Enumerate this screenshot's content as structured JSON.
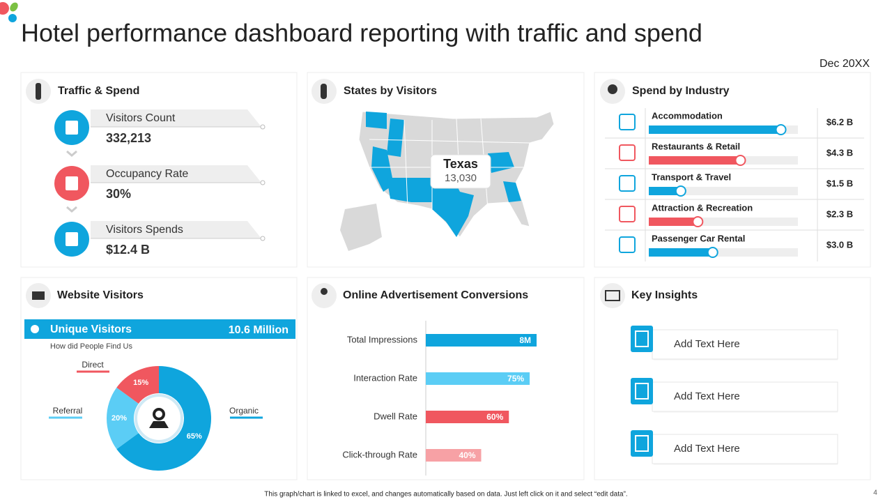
{
  "header": {
    "title": "Hotel performance dashboard reporting with traffic and spend",
    "date": "Dec 20XX"
  },
  "traffic": {
    "title": "Traffic & Spend",
    "items": [
      {
        "label": "Visitors Count",
        "value": "332,213"
      },
      {
        "label": "Occupancy Rate",
        "value": "30%"
      },
      {
        "label": "Visitors Spends",
        "value": "$12.4 B"
      }
    ]
  },
  "states": {
    "title": "States by Visitors",
    "callout": {
      "state": "Texas",
      "value": "13,030"
    }
  },
  "industry": {
    "title": "Spend by Industry",
    "xlim": [
      0,
      7
    ],
    "items": [
      {
        "label": "Accommodation",
        "value": 6.2,
        "value_label": "$6.2 B",
        "color": "#0fa5dd"
      },
      {
        "label": "Restaurants & Retail",
        "value": 4.3,
        "value_label": "$4.3 B",
        "color": "#f0575f"
      },
      {
        "label": "Transport & Travel",
        "value": 1.5,
        "value_label": "$1.5 B",
        "color": "#0fa5dd"
      },
      {
        "label": "Attraction & Recreation",
        "value": 2.3,
        "value_label": "$2.3 B",
        "color": "#f0575f"
      },
      {
        "label": "Passenger Car Rental",
        "value": 3.0,
        "value_label": "$3.0 B",
        "color": "#0fa5dd"
      }
    ]
  },
  "website": {
    "title": "Website Visitors",
    "banner": {
      "label": "Unique Visitors",
      "value": "10.6 Million"
    },
    "subtitle": "How did People Find Us",
    "sources": {
      "type": "pie",
      "categories": [
        "Organic",
        "Referral",
        "Direct"
      ],
      "values": [
        65,
        20,
        15
      ],
      "value_labels": [
        "65%",
        "20%",
        "15%"
      ],
      "colors": [
        "#0fa5dd",
        "#5bcdf5",
        "#f0575f"
      ]
    }
  },
  "ads": {
    "type": "bar",
    "title": "Online Advertisement Conversions",
    "xlim": [
      0,
      80
    ],
    "categories": [
      "Total Impressions",
      "Interaction Rate",
      "Dwell Rate",
      "Click-through Rate"
    ],
    "values": [
      8,
      75,
      60,
      40
    ],
    "value_labels": [
      "8M",
      "75%",
      "60%",
      "40%"
    ],
    "colors": [
      "#0fa5dd",
      "#5bcdf5",
      "#f0575f",
      "#f7a1a5"
    ]
  },
  "insights": {
    "title": "Key Insights",
    "items": [
      "Add Text Here",
      "Add Text Here",
      "Add Text Here"
    ]
  },
  "footer": {
    "note": "This graph/chart is linked to excel, and changes automatically based on data. Just left click on it and select “edit data”.",
    "page": "4"
  }
}
